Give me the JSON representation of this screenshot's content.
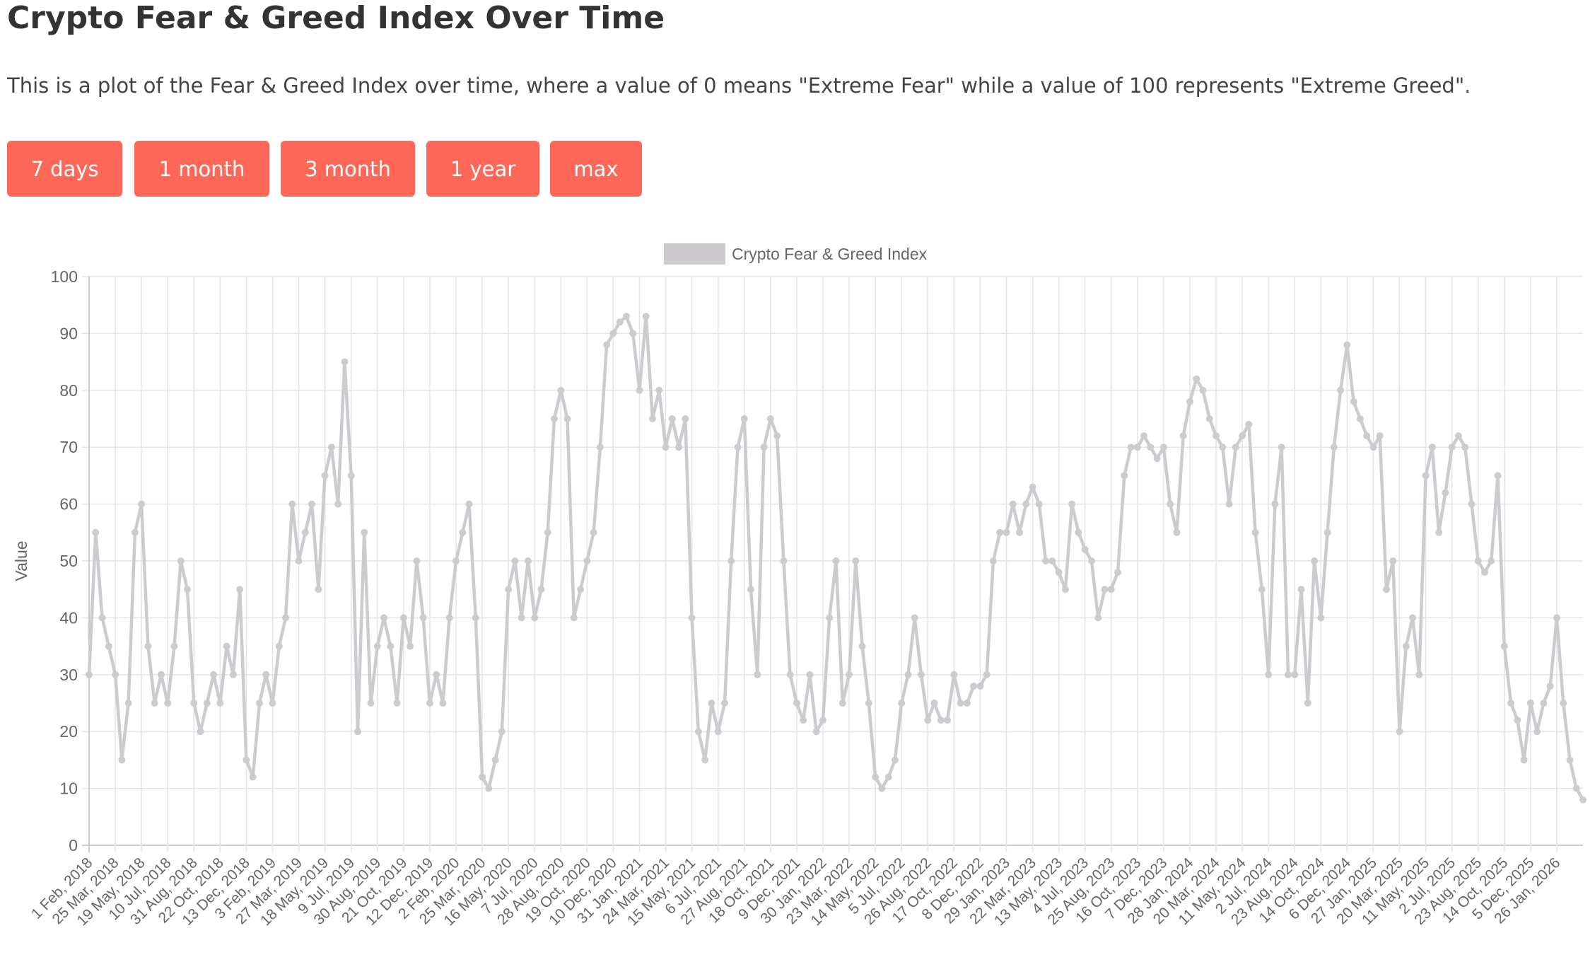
{
  "header": {
    "title": "Crypto Fear & Greed Index Over Time",
    "subtitle": "This is a plot of the Fear & Greed Index over time, where a value of 0 means \"Extreme Fear\" while a value of 100 represents \"Extreme Greed\"."
  },
  "buttons": [
    "7 days",
    "1 month",
    "3 month",
    "1 year",
    "max"
  ],
  "chart_data": {
    "type": "line",
    "legend_position": "top",
    "y_label": "Value",
    "grid": true,
    "ylim": [
      0,
      100
    ],
    "yticks": [
      0,
      10,
      20,
      30,
      40,
      50,
      60,
      70,
      80,
      90,
      100
    ],
    "categories": [
      "1 Feb, 2018",
      null,
      null,
      null,
      "25 Mar, 2018",
      null,
      null,
      null,
      "19 May, 2018",
      null,
      null,
      null,
      "10 Jul, 2018",
      null,
      null,
      null,
      "31 Aug, 2018",
      null,
      null,
      null,
      "22 Oct, 2018",
      null,
      null,
      null,
      "13 Dec, 2018",
      null,
      null,
      null,
      "3 Feb, 2019",
      null,
      null,
      null,
      "27 Mar, 2019",
      null,
      null,
      null,
      "18 May, 2019",
      null,
      null,
      null,
      "9 Jul, 2019",
      null,
      null,
      null,
      "30 Aug, 2019",
      null,
      null,
      null,
      "21 Oct, 2019",
      null,
      null,
      null,
      "12 Dec, 2019",
      null,
      null,
      null,
      "2 Feb, 2020",
      null,
      null,
      null,
      "25 Mar, 2020",
      null,
      null,
      null,
      "16 May, 2020",
      null,
      null,
      null,
      "7 Jul, 2020",
      null,
      null,
      null,
      "28 Aug, 2020",
      null,
      null,
      null,
      "19 Oct, 2020",
      null,
      null,
      null,
      "10 Dec, 2020",
      null,
      null,
      null,
      "31 Jan, 2021",
      null,
      null,
      null,
      "24 Mar, 2021",
      null,
      null,
      null,
      "15 May, 2021",
      null,
      null,
      null,
      "6 Jul, 2021",
      null,
      null,
      null,
      "27 Aug, 2021",
      null,
      null,
      null,
      "18 Oct, 2021",
      null,
      null,
      null,
      "9 Dec, 2021",
      null,
      null,
      null,
      "30 Jan, 2022",
      null,
      null,
      null,
      "23 Mar, 2022",
      null,
      null,
      null,
      "14 May, 2022",
      null,
      null,
      null,
      "5 Jul, 2022",
      null,
      null,
      null,
      "26 Aug, 2022",
      null,
      null,
      null,
      "17 Oct, 2022",
      null,
      null,
      null,
      "8 Dec, 2022",
      null,
      null,
      null,
      "29 Jan, 2023",
      null,
      null,
      null,
      "22 Mar, 2023",
      null,
      null,
      null,
      "13 May, 2023",
      null,
      null,
      null,
      "4 Jul, 2023",
      null,
      null,
      null,
      "25 Aug, 2023",
      null,
      null,
      null,
      "16 Oct, 2023",
      null,
      null,
      null,
      "7 Dec, 2023",
      null,
      null,
      null,
      "28 Jan, 2024",
      null,
      null,
      null,
      "20 Mar, 2024",
      null,
      null,
      null,
      "11 May, 2024",
      null,
      null,
      null,
      "2 Jul, 2024",
      null,
      null,
      null,
      "23 Aug, 2024",
      null,
      null,
      null,
      "14 Oct, 2024",
      null,
      null,
      null,
      "6 Dec, 2024",
      null,
      null,
      null,
      "27 Jan, 2025",
      null,
      null,
      null,
      "20 Mar, 2025",
      null,
      null,
      null,
      "11 May, 2025",
      null,
      null,
      null,
      "2 Jul, 2025",
      null,
      null,
      null,
      "23 Aug, 2025",
      null,
      null,
      null,
      "14 Oct, 2025",
      null,
      null,
      null,
      "5 Dec, 2025",
      null,
      null,
      null,
      "26 Jan, 2026",
      null,
      null,
      null,
      null
    ],
    "series": [
      {
        "name": "Crypto Fear & Greed Index",
        "color": "#cdcbcf",
        "values": [
          30,
          55,
          40,
          35,
          30,
          15,
          25,
          55,
          60,
          35,
          25,
          30,
          25,
          35,
          50,
          45,
          25,
          20,
          25,
          30,
          25,
          35,
          30,
          45,
          15,
          12,
          25,
          30,
          25,
          35,
          40,
          60,
          50,
          55,
          60,
          45,
          65,
          70,
          60,
          85,
          65,
          20,
          55,
          25,
          35,
          40,
          35,
          25,
          40,
          35,
          50,
          40,
          25,
          30,
          25,
          40,
          50,
          55,
          60,
          40,
          12,
          10,
          15,
          20,
          45,
          50,
          40,
          50,
          40,
          45,
          55,
          75,
          80,
          75,
          40,
          45,
          50,
          55,
          70,
          88,
          90,
          92,
          93,
          90,
          80,
          93,
          75,
          80,
          70,
          75,
          70,
          75,
          40,
          20,
          15,
          25,
          20,
          25,
          50,
          70,
          75,
          45,
          30,
          70,
          75,
          72,
          50,
          30,
          25,
          22,
          30,
          20,
          22,
          40,
          50,
          25,
          30,
          50,
          35,
          25,
          12,
          10,
          12,
          15,
          25,
          30,
          40,
          30,
          22,
          25,
          22,
          22,
          30,
          25,
          25,
          28,
          28,
          30,
          50,
          55,
          55,
          60,
          55,
          60,
          63,
          60,
          50,
          50,
          48,
          45,
          60,
          55,
          52,
          50,
          40,
          45,
          45,
          48,
          65,
          70,
          70,
          72,
          70,
          68,
          70,
          60,
          55,
          72,
          78,
          82,
          80,
          75,
          72,
          70,
          60,
          70,
          72,
          74,
          55,
          45,
          30,
          60,
          70,
          30,
          30,
          45,
          25,
          50,
          40,
          55,
          70,
          80,
          88,
          78,
          75,
          72,
          70,
          72,
          45,
          50,
          20,
          35,
          40,
          30,
          65,
          70,
          55,
          62,
          70,
          72,
          70,
          60,
          50,
          48,
          50,
          65,
          35,
          25,
          22,
          15,
          25,
          20,
          25,
          28,
          40,
          25,
          15,
          10,
          8
        ]
      }
    ]
  }
}
